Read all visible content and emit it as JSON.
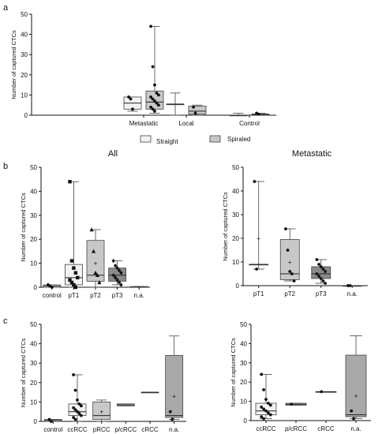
{
  "panel_labels": {
    "a": "a",
    "b": "b",
    "c": "c"
  },
  "chart_data": [
    {
      "id": "a",
      "type": "box",
      "title": "",
      "xlabel": "",
      "ylabel": "Number of captured CTCs",
      "ylim": [
        0,
        50
      ],
      "yticks": [
        0,
        10,
        20,
        30,
        40,
        50
      ],
      "categories": [
        "Metastatic",
        "Local",
        "Control"
      ],
      "legend": [
        {
          "name": "Straight",
          "fill": "#f2f2f2"
        },
        {
          "name": "Spiraled",
          "fill": "#c8c8c8"
        }
      ],
      "legend_position": "bottom",
      "boxes": [
        {
          "group": "Metastatic",
          "series": "Straight",
          "fill": "#f2f2f2",
          "min": 2,
          "q1": 3,
          "median": 6,
          "q3": 9,
          "max": 9,
          "points": [
            {
              "y": 9,
              "m": "dot"
            },
            {
              "y": 8,
              "m": "dot"
            },
            {
              "y": 3,
              "m": "dot"
            }
          ]
        },
        {
          "group": "Metastatic",
          "series": "Spiraled",
          "fill": "#c8c8c8",
          "min": 1,
          "q1": 3,
          "median": 6.5,
          "q3": 12,
          "max": 44,
          "points": [
            {
              "y": 44,
              "m": "dot"
            },
            {
              "y": 24,
              "m": "dot"
            },
            {
              "y": 15,
              "m": "dot"
            },
            {
              "y": 11,
              "m": "dot"
            },
            {
              "y": 10,
              "m": "dot"
            },
            {
              "y": 9,
              "m": "dot"
            },
            {
              "y": 8,
              "m": "dot"
            },
            {
              "y": 7,
              "m": "dot"
            },
            {
              "y": 6,
              "m": "dot"
            },
            {
              "y": 5,
              "m": "dot"
            },
            {
              "y": 4,
              "m": "dot"
            },
            {
              "y": 3,
              "m": "dot"
            },
            {
              "y": 2,
              "m": "dot"
            }
          ]
        },
        {
          "group": "Local",
          "series": "Straight",
          "fill": "#f2f2f2",
          "min": 0,
          "q1": 5.5,
          "median": 5.5,
          "q3": 5.5,
          "max": 11,
          "points": []
        },
        {
          "group": "Local",
          "series": "Spiraled",
          "fill": "#c8c8c8",
          "min": 0,
          "q1": 0.5,
          "median": 2,
          "q3": 4.5,
          "max": 5,
          "points": [
            {
              "y": 4,
              "m": "dot"
            },
            {
              "y": 1,
              "m": "dot"
            }
          ]
        },
        {
          "group": "Control",
          "series": "Straight",
          "fill": "#f2f2f2",
          "min": 0,
          "q1": 0,
          "median": 0,
          "q3": 0,
          "max": 1,
          "points": []
        },
        {
          "group": "Control",
          "series": "Spiraled",
          "fill": "#c8c8c8",
          "min": 0,
          "q1": 0,
          "median": 0.3,
          "q3": 0.6,
          "max": 1,
          "points": [
            {
              "y": 1,
              "m": "dot"
            },
            {
              "y": 0.5,
              "m": "dot"
            }
          ]
        }
      ]
    },
    {
      "id": "b-all",
      "type": "box",
      "title": "All",
      "xlabel": "",
      "ylabel": "Number of captured CTCs",
      "ylim": [
        0,
        50
      ],
      "yticks": [
        0,
        10,
        20,
        30,
        40,
        50
      ],
      "categories": [
        "control",
        "pT1",
        "pT2",
        "pT3",
        "n.a."
      ],
      "boxes": [
        {
          "group": "control",
          "fill": "#f2f2f2",
          "min": 0,
          "q1": 0,
          "median": 0.5,
          "q3": 1,
          "max": 1,
          "mean": null,
          "points": [
            {
              "y": 1,
              "m": "dot"
            },
            {
              "y": 0.5,
              "m": "dot"
            },
            {
              "y": 0,
              "m": "dot"
            }
          ]
        },
        {
          "group": "pT1",
          "fill": "#f2f2f2",
          "min": 0,
          "q1": 1,
          "median": 4,
          "q3": 9.5,
          "max": 44,
          "mean": null,
          "points": [
            {
              "y": 44,
              "m": "square"
            },
            {
              "y": 11,
              "m": "square"
            },
            {
              "y": 8,
              "m": "square"
            },
            {
              "y": 6,
              "m": "square"
            },
            {
              "y": 4,
              "m": "square"
            },
            {
              "y": 3,
              "m": "square"
            },
            {
              "y": 2,
              "m": "square"
            },
            {
              "y": 1,
              "m": "square"
            },
            {
              "y": 0,
              "m": "square"
            }
          ]
        },
        {
          "group": "pT2",
          "fill": "#c8c8c8",
          "min": 0,
          "q1": 2.5,
          "median": 5,
          "q3": 19.5,
          "max": 24,
          "mean": 10,
          "points": [
            {
              "y": 24,
              "m": "triangle"
            },
            {
              "y": 15,
              "m": "triangle"
            },
            {
              "y": 6,
              "m": "triangle"
            },
            {
              "y": 5,
              "m": "triangle"
            },
            {
              "y": 2,
              "m": "triangle"
            }
          ]
        },
        {
          "group": "pT3",
          "fill": "#8a8a8a",
          "min": 1,
          "q1": 2.5,
          "median": 5,
          "q3": 8,
          "max": 11,
          "mean": null,
          "points": [
            {
              "y": 11,
              "m": "diamond"
            },
            {
              "y": 9,
              "m": "diamond"
            },
            {
              "y": 8,
              "m": "diamond"
            },
            {
              "y": 7,
              "m": "diamond"
            },
            {
              "y": 6,
              "m": "diamond"
            },
            {
              "y": 5,
              "m": "diamond"
            },
            {
              "y": 4,
              "m": "diamond"
            },
            {
              "y": 3,
              "m": "diamond"
            },
            {
              "y": 2,
              "m": "diamond"
            },
            {
              "y": 1,
              "m": "diamond"
            }
          ]
        },
        {
          "group": "n.a.",
          "fill": "#f2f2f2",
          "min": 0,
          "q1": 0,
          "median": 0,
          "q3": 0.3,
          "max": 0.3,
          "mean": null,
          "points": []
        }
      ]
    },
    {
      "id": "b-metastatic",
      "type": "box",
      "title": "Metastatic",
      "xlabel": "",
      "ylabel": "Number of captured CTCs",
      "ylim": [
        0,
        50
      ],
      "yticks": [
        0,
        10,
        20,
        30,
        40,
        50
      ],
      "categories": [
        "pT1",
        "pT2",
        "pT3",
        "n.a."
      ],
      "boxes": [
        {
          "group": "pT1",
          "fill": "#f2f2f2",
          "min": 7,
          "q1": 9,
          "median": 9,
          "q3": 9,
          "max": 44,
          "mean": 20,
          "points": [
            {
              "y": 44,
              "m": "dot"
            },
            {
              "y": 7,
              "m": "dot"
            }
          ]
        },
        {
          "group": "pT2",
          "fill": "#c8c8c8",
          "min": 2,
          "q1": 2.5,
          "median": 5,
          "q3": 19.5,
          "max": 24,
          "mean": 10,
          "points": [
            {
              "y": 24,
              "m": "dot"
            },
            {
              "y": 15,
              "m": "dot"
            },
            {
              "y": 6,
              "m": "dot"
            },
            {
              "y": 5,
              "m": "dot"
            },
            {
              "y": 2,
              "m": "dot"
            }
          ]
        },
        {
          "group": "pT3",
          "fill": "#8a8a8a",
          "min": 1,
          "q1": 3,
          "median": 5,
          "q3": 8,
          "max": 11,
          "mean": null,
          "points": [
            {
              "y": 11,
              "m": "dot"
            },
            {
              "y": 9,
              "m": "dot"
            },
            {
              "y": 8,
              "m": "dot"
            },
            {
              "y": 7,
              "m": "dot"
            },
            {
              "y": 6,
              "m": "dot"
            },
            {
              "y": 5,
              "m": "dot"
            },
            {
              "y": 4,
              "m": "dot"
            },
            {
              "y": 3,
              "m": "dot"
            },
            {
              "y": 2,
              "m": "dot"
            },
            {
              "y": 1,
              "m": "dot"
            }
          ]
        },
        {
          "group": "n.a.",
          "fill": "#f2f2f2",
          "min": 0,
          "q1": 0,
          "median": 0,
          "q3": 0,
          "max": 0,
          "mean": null,
          "points": [
            {
              "y": 0,
              "m": "dot"
            },
            {
              "y": 0,
              "m": "dot"
            }
          ]
        }
      ]
    },
    {
      "id": "c-all",
      "type": "box",
      "title": "",
      "xlabel": "",
      "ylabel": "Number of captured CTCs",
      "ylim": [
        0,
        50
      ],
      "yticks": [
        0,
        10,
        20,
        30,
        40,
        50
      ],
      "categories": [
        "control",
        "ccRCC",
        "pRCC",
        "p/cRCC",
        "cRCC",
        "n.a."
      ],
      "boxes": [
        {
          "group": "control",
          "fill": "#f2f2f2",
          "min": 0,
          "q1": 0,
          "median": 0.5,
          "q3": 1,
          "max": 1,
          "mean": null,
          "points": [
            {
              "y": 1,
              "m": "dot"
            },
            {
              "y": 0,
              "m": "dot"
            }
          ]
        },
        {
          "group": "ccRCC",
          "fill": "#f2f2f2",
          "min": 0,
          "q1": 3,
          "median": 5,
          "q3": 9,
          "max": 24,
          "mean": null,
          "points": [
            {
              "y": 24,
              "m": "dot"
            },
            {
              "y": 16,
              "m": "dot"
            },
            {
              "y": 11,
              "m": "dot"
            },
            {
              "y": 9,
              "m": "dot"
            },
            {
              "y": 8,
              "m": "dot"
            },
            {
              "y": 7,
              "m": "dot"
            },
            {
              "y": 6,
              "m": "dot"
            },
            {
              "y": 5,
              "m": "dot"
            },
            {
              "y": 4,
              "m": "dot"
            },
            {
              "y": 3,
              "m": "dot"
            },
            {
              "y": 2,
              "m": "dot"
            },
            {
              "y": 1,
              "m": "dot"
            }
          ]
        },
        {
          "group": "pRCC",
          "fill": "#c8c8c8",
          "min": 0,
          "q1": 1,
          "median": 3,
          "q3": 10,
          "max": 11,
          "mean": 5,
          "points": []
        },
        {
          "group": "p/cRCC",
          "fill": "#c8c8c8",
          "min": 8,
          "q1": 8,
          "median": 8.5,
          "q3": 9,
          "max": 9,
          "mean": null,
          "points": []
        },
        {
          "group": "cRCC",
          "fill": "#f2f2f2",
          "min": 15,
          "q1": 15,
          "median": 15,
          "q3": 15,
          "max": 15,
          "mean": null,
          "points": []
        },
        {
          "group": "n.a.",
          "fill": "#a9a9a9",
          "min": 1,
          "q1": 2,
          "median": 3,
          "q3": 34,
          "max": 44,
          "mean": 13,
          "points": [
            {
              "y": 5,
              "m": "dot"
            },
            {
              "y": 1,
              "m": "dot"
            }
          ]
        }
      ]
    },
    {
      "id": "c-metastatic",
      "type": "box",
      "title": "",
      "xlabel": "",
      "ylabel": "Number of captured CTCs",
      "ylim": [
        0,
        50
      ],
      "yticks": [
        0,
        10,
        20,
        30,
        40,
        50
      ],
      "categories": [
        "ccRCC",
        "p/cRCC",
        "cRCC",
        "n.a."
      ],
      "boxes": [
        {
          "group": "ccRCC",
          "fill": "#f2f2f2",
          "min": 1,
          "q1": 3,
          "median": 5,
          "q3": 9,
          "max": 24,
          "mean": null,
          "points": [
            {
              "y": 24,
              "m": "dot"
            },
            {
              "y": 16,
              "m": "dot"
            },
            {
              "y": 11,
              "m": "dot"
            },
            {
              "y": 9,
              "m": "dot"
            },
            {
              "y": 8,
              "m": "dot"
            },
            {
              "y": 7,
              "m": "dot"
            },
            {
              "y": 6,
              "m": "dot"
            },
            {
              "y": 5,
              "m": "dot"
            },
            {
              "y": 4,
              "m": "dot"
            },
            {
              "y": 3,
              "m": "dot"
            },
            {
              "y": 2,
              "m": "dot"
            },
            {
              "y": 1,
              "m": "dot"
            }
          ]
        },
        {
          "group": "p/cRCC",
          "fill": "#c8c8c8",
          "min": 8,
          "q1": 8,
          "median": 8.5,
          "q3": 9,
          "max": 9,
          "mean": null,
          "points": [
            {
              "y": 8.5,
              "m": "dot"
            }
          ]
        },
        {
          "group": "cRCC",
          "fill": "#f2f2f2",
          "min": 15,
          "q1": 15,
          "median": 15,
          "q3": 15,
          "max": 15,
          "mean": null,
          "points": [
            {
              "y": 15,
              "m": "dot"
            }
          ]
        },
        {
          "group": "n.a.",
          "fill": "#a9a9a9",
          "min": 1,
          "q1": 2,
          "median": 3,
          "q3": 34,
          "max": 44,
          "mean": 13,
          "points": [
            {
              "y": 5,
              "m": "dot"
            },
            {
              "y": 1,
              "m": "dot"
            }
          ]
        }
      ]
    }
  ]
}
